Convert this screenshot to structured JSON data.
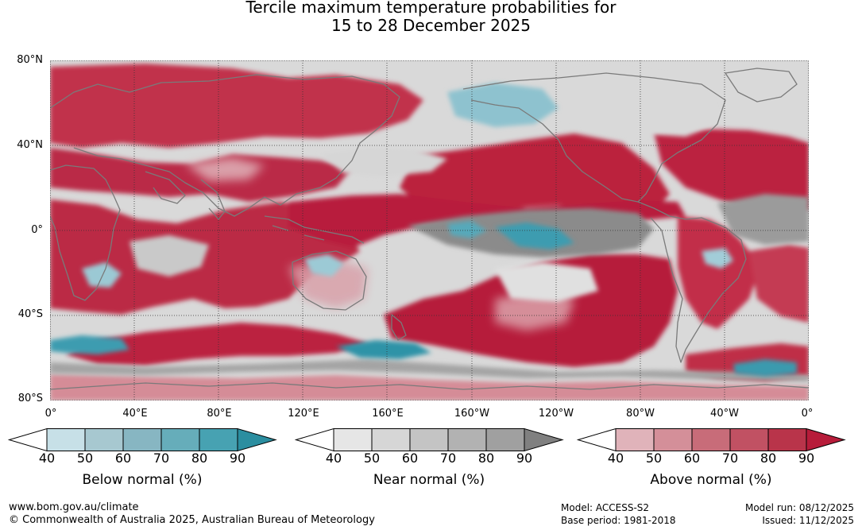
{
  "title": {
    "line1": "Tercile maximum temperature probabilities for",
    "line2": "15 to 28 December 2025"
  },
  "map": {
    "lat_labels": [
      "80°N",
      "40°N",
      "0°",
      "40°S",
      "80°S"
    ],
    "lon_labels": [
      "0°",
      "40°E",
      "80°E",
      "120°E",
      "160°E",
      "160°W",
      "120°W",
      "80°W",
      "40°W",
      "0°"
    ],
    "dominant_category": "above normal",
    "colors": {
      "ocean_base": "#d9d9d9",
      "coastline": "#7a7a7a",
      "grid": "#333333"
    }
  },
  "colorbars": [
    {
      "title": "Below normal (%)",
      "ticks": [
        "40",
        "50",
        "60",
        "70",
        "80",
        "90"
      ],
      "colors": [
        "#ffffff",
        "#c7e0e7",
        "#a7c8d0",
        "#87b6c2",
        "#66adba",
        "#47a2b2",
        "#2b8ea0"
      ]
    },
    {
      "title": "Near normal (%)",
      "ticks": [
        "40",
        "50",
        "60",
        "70",
        "80",
        "90"
      ],
      "colors": [
        "#ffffff",
        "#e6e6e6",
        "#d6d6d6",
        "#c4c4c4",
        "#b2b2b2",
        "#a0a0a0",
        "#808080"
      ]
    },
    {
      "title": "Above normal (%)",
      "ticks": [
        "40",
        "50",
        "60",
        "70",
        "80",
        "90"
      ],
      "colors": [
        "#ffffff",
        "#e0b3ba",
        "#d48f99",
        "#c86c79",
        "#c15163",
        "#b9344a",
        "#b71c3a"
      ]
    }
  ],
  "footer": {
    "url": "www.bom.gov.au/climate",
    "copyright": "© Commonwealth of Australia 2025, Australian Bureau of Meteorology",
    "model": "Model: ACCESS-S2",
    "base_period": "Base period: 1981-2018",
    "model_run": "Model run: 08/12/2025",
    "issued": "Issued: 11/12/2025"
  }
}
